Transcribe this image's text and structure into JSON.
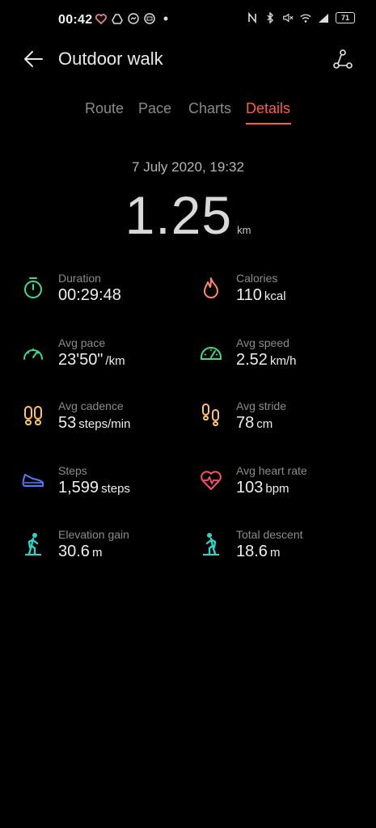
{
  "status_bar": {
    "time": "00:42",
    "battery": "71",
    "left_icons": [
      "heart-icon",
      "drive-icon",
      "messenger-icon",
      "message-icon",
      "dot-icon"
    ],
    "right_icons": [
      "nfc-icon",
      "bluetooth-icon",
      "mute-icon",
      "wifi-icon",
      "signal-icon"
    ]
  },
  "header": {
    "title": "Outdoor walk"
  },
  "tabs": [
    {
      "label": "Route"
    },
    {
      "label": "Pace"
    },
    {
      "label": "Charts"
    },
    {
      "label": "Details"
    }
  ],
  "active_tab": "Details",
  "summary": {
    "datetime": "7 July 2020, 19:32",
    "distance": "1.25",
    "distance_unit": "km"
  },
  "colors": {
    "accent": "#ff5a4f",
    "green": "#3ddc84",
    "orange": "#ff8a65",
    "yellow": "#ffc46b",
    "blue": "#4f7dff",
    "pink": "#ff4f6a",
    "teal": "#2ed3c6"
  },
  "stats": [
    {
      "label": "Duration",
      "value": "00:29:48",
      "unit": "",
      "icon": "stopwatch-icon"
    },
    {
      "label": "Calories",
      "value": "110",
      "unit": "kcal",
      "icon": "flame-icon"
    },
    {
      "label": "Avg pace",
      "value": "23'50\"",
      "unit": "/km",
      "icon": "speedometer-icon"
    },
    {
      "label": "Avg speed",
      "value": "2.52",
      "unit": "km/h",
      "icon": "speed-gauge-icon"
    },
    {
      "label": "Avg cadence",
      "value": "53",
      "unit": "steps/min",
      "icon": "footprints-icon"
    },
    {
      "label": "Avg stride",
      "value": "78",
      "unit": "cm",
      "icon": "stride-footprints-icon"
    },
    {
      "label": "Steps",
      "value": "1,599",
      "unit": "steps",
      "icon": "shoe-icon"
    },
    {
      "label": "Avg heart rate",
      "value": "103",
      "unit": "bpm",
      "icon": "heart-rate-icon"
    },
    {
      "label": "Elevation gain",
      "value": "30.6",
      "unit": "m",
      "icon": "hiker-up-icon"
    },
    {
      "label": "Total descent",
      "value": "18.6",
      "unit": "m",
      "icon": "hiker-down-icon"
    }
  ]
}
